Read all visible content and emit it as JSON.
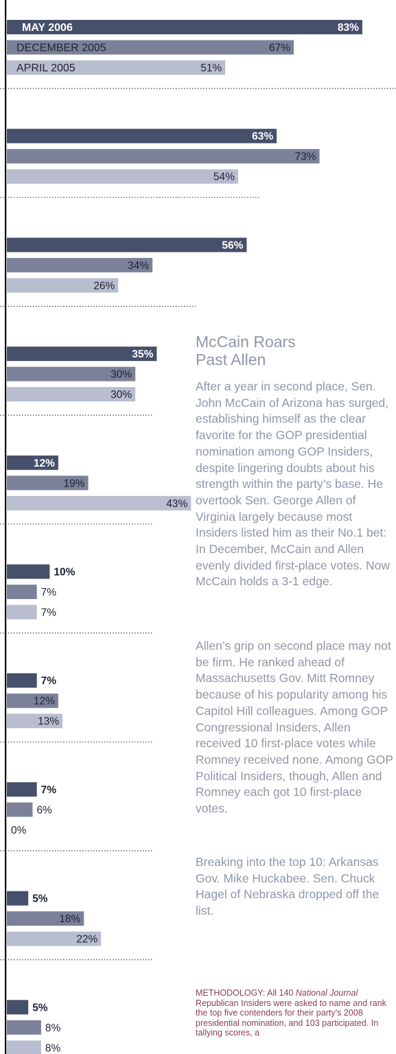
{
  "chart_data": {
    "type": "bar",
    "orientation": "horizontal",
    "xlim": [
      0,
      100
    ],
    "series": [
      {
        "name": "MAY 2006",
        "color": "#46506a",
        "values": [
          83,
          63,
          56,
          35,
          12,
          10,
          7,
          7,
          5,
          5
        ]
      },
      {
        "name": "DECEMBER 2005",
        "color": "#7b8198",
        "values": [
          67,
          73,
          34,
          30,
          19,
          7,
          12,
          6,
          18,
          8
        ]
      },
      {
        "name": "APRIL 2005",
        "color": "#b8bdd0",
        "values": [
          51,
          54,
          26,
          30,
          43,
          7,
          13,
          0,
          22,
          8
        ]
      }
    ],
    "value_labels": [
      [
        "83%",
        "67%",
        "51%"
      ],
      [
        "63%",
        "73%",
        "54%"
      ],
      [
        "56%",
        "34%",
        "26%"
      ],
      [
        "35%",
        "30%",
        "30%"
      ],
      [
        "12%",
        "19%",
        "43%"
      ],
      [
        "10%",
        "7%",
        "7%"
      ],
      [
        "7%",
        "12%",
        "13%"
      ],
      [
        "7%",
        "6%",
        "0%"
      ],
      [
        "5%",
        "18%",
        "22%"
      ],
      [
        "5%",
        "8%",
        "8%"
      ]
    ],
    "grid": false
  },
  "article": {
    "headline_line1": "McCain Roars",
    "headline_line2": "Past Allen",
    "paragraphs": [
      "After a year in second place, Sen. John McCain of Arizona has surged, establishing himself as the clear favorite for the GOP presidential nomination among GOP Insiders, despite lingering doubts about his strength within the party’s base. He overtook Sen. George Allen of Virginia largely because most Insiders listed him as their No.1 bet: In December, McCain and Allen evenly divided first-place votes. Now McCain holds a 3-1 edge.",
      "Allen’s grip on second place may not be firm. He ranked ahead of Massachusetts Gov. Mitt Romney because of his popularity among his Capitol Hill colleagues. Among GOP Congressional Insiders, Allen received 10 first-place votes while Romney received none. Among GOP Political Insiders, though, Allen and Romney each got 10 first-place votes.",
      "Breaking into the top 10: Arkansas Gov. Mike Huckabee. Sen. Chuck Hagel of Nebraska dropped off the list."
    ],
    "methodology_prefix": "METHODOLOGY: All 140 ",
    "methodology_italic": "National Journal",
    "methodology_rest": " Republican Insiders were asked to name and rank the top five contenders for their party’s 2008 presidential nomination, and 103 participated. In tallying scores, a"
  }
}
